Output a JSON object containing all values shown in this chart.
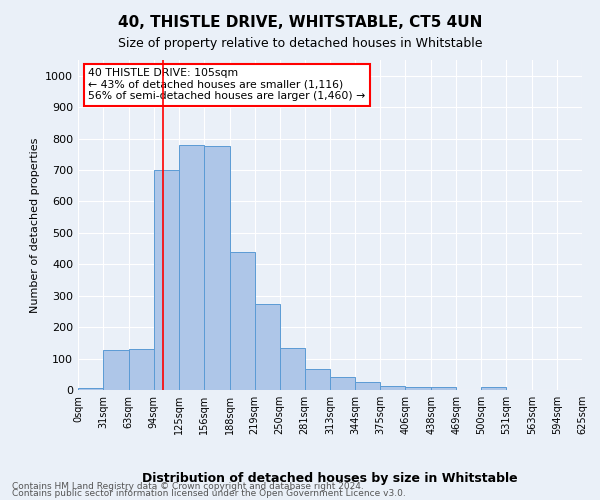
{
  "title": "40, THISTLE DRIVE, WHITSTABLE, CT5 4UN",
  "subtitle": "Size of property relative to detached houses in Whitstable",
  "xlabel": "Distribution of detached houses by size in Whitstable",
  "ylabel": "Number of detached properties",
  "footnote1": "Contains HM Land Registry data © Crown copyright and database right 2024.",
  "footnote2": "Contains public sector information licensed under the Open Government Licence v3.0.",
  "annotation_line1": "40 THISTLE DRIVE: 105sqm",
  "annotation_line2": "← 43% of detached houses are smaller (1,116)",
  "annotation_line3": "56% of semi-detached houses are larger (1,460) →",
  "bar_edges": [
    0,
    31,
    63,
    94,
    125,
    156,
    188,
    219,
    250,
    281,
    313,
    344,
    375,
    406,
    438,
    469,
    500,
    531,
    563,
    594,
    625
  ],
  "bar_heights": [
    7,
    128,
    130,
    700,
    778,
    775,
    440,
    275,
    133,
    68,
    40,
    26,
    14,
    11,
    10,
    0,
    10,
    0,
    0,
    0
  ],
  "property_size": 105,
  "bar_color": "#aec6e8",
  "bar_edge_color": "#5b9bd5",
  "vline_color": "red",
  "background_color": "#eaf0f8",
  "grid_color": "white",
  "annotation_box_color": "white",
  "annotation_box_edge": "red",
  "ylim": [
    0,
    1050
  ],
  "yticks": [
    0,
    100,
    200,
    300,
    400,
    500,
    600,
    700,
    800,
    900,
    1000
  ],
  "tick_labels": [
    "0sqm",
    "31sqm",
    "63sqm",
    "94sqm",
    "125sqm",
    "156sqm",
    "188sqm",
    "219sqm",
    "250sqm",
    "281sqm",
    "313sqm",
    "344sqm",
    "375sqm",
    "406sqm",
    "438sqm",
    "469sqm",
    "500sqm",
    "531sqm",
    "563sqm",
    "594sqm",
    "625sqm"
  ]
}
